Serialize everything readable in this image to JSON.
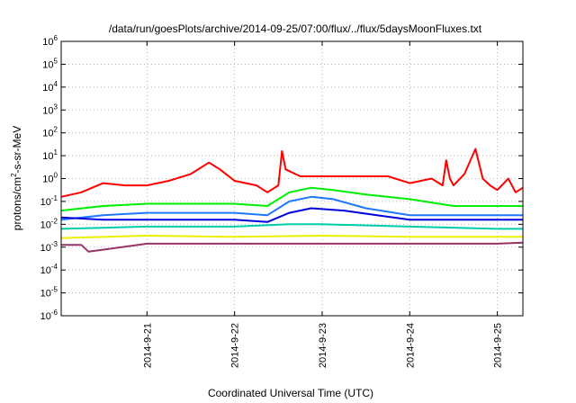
{
  "chart_data": {
    "type": "line",
    "title": "/data/run/goesPlots/archive/2014-09-25/07:00/flux/../flux/5daysMoonFluxes.txt",
    "xlabel": "Coordinated Universal Time (UTC)",
    "ylabel_parts": [
      "protons/cm",
      "2",
      "-s-sr-MeV"
    ],
    "yscale": "log",
    "ylim_exp": [
      -6,
      6
    ],
    "y_ticks": [
      {
        "base": "10",
        "exp": "6"
      },
      {
        "base": "10",
        "exp": "5"
      },
      {
        "base": "10",
        "exp": "4"
      },
      {
        "base": "10",
        "exp": "3"
      },
      {
        "base": "10",
        "exp": "2"
      },
      {
        "base": "10",
        "exp": "1"
      },
      {
        "base": "10",
        "exp": "0"
      },
      {
        "base": "10",
        "exp": "-1"
      },
      {
        "base": "10",
        "exp": "-2"
      },
      {
        "base": "10",
        "exp": "-3"
      },
      {
        "base": "10",
        "exp": "-4"
      },
      {
        "base": "10",
        "exp": "-5"
      },
      {
        "base": "10",
        "exp": "-6"
      }
    ],
    "x_start": "2014-09-20T00:30",
    "x_end": "2014-09-25T07:00",
    "x_ticks": [
      "2014-9-21",
      "2014-9-22",
      "2014-9-23",
      "2014-9-24",
      "2014-9-25"
    ],
    "grid": true,
    "series": [
      {
        "color": "#ff0000",
        "x": [
          "2014-09-20T00:30",
          "2014-09-20T06:00",
          "2014-09-20T12:00",
          "2014-09-20T18:00",
          "2014-09-21T00:00",
          "2014-09-21T06:00",
          "2014-09-21T12:00",
          "2014-09-21T17:00",
          "2014-09-21T20:00",
          "2014-09-22T00:00",
          "2014-09-22T06:00",
          "2014-09-22T09:00",
          "2014-09-22T12:00",
          "2014-09-22T13:00",
          "2014-09-22T14:00",
          "2014-09-22T18:00",
          "2014-09-23T00:00",
          "2014-09-23T06:00",
          "2014-09-23T12:00",
          "2014-09-23T18:00",
          "2014-09-24T00:00",
          "2014-09-24T06:00",
          "2014-09-24T09:00",
          "2014-09-24T10:00",
          "2014-09-24T11:00",
          "2014-09-24T12:00",
          "2014-09-24T15:00",
          "2014-09-24T18:00",
          "2014-09-24T20:00",
          "2014-09-24T22:00",
          "2014-09-25T00:00",
          "2014-09-25T03:00",
          "2014-09-25T05:00",
          "2014-09-25T07:00"
        ],
        "y_exp": [
          -0.8,
          -0.6,
          -0.2,
          -0.3,
          -0.3,
          -0.1,
          0.2,
          0.7,
          0.4,
          -0.1,
          -0.3,
          -0.6,
          -0.3,
          1.2,
          0.4,
          0.1,
          0.1,
          0.1,
          0.1,
          0.1,
          -0.2,
          0,
          -0.3,
          0.8,
          0,
          -0.3,
          0.2,
          1.3,
          0,
          -0.3,
          -0.5,
          0,
          -0.6,
          -0.4
        ]
      },
      {
        "color": "#00ee00",
        "x": [
          "2014-09-20T00:30",
          "2014-09-20T12:00",
          "2014-09-21T00:00",
          "2014-09-21T12:00",
          "2014-09-22T00:00",
          "2014-09-22T09:00",
          "2014-09-22T15:00",
          "2014-09-22T21:00",
          "2014-09-23T03:00",
          "2014-09-23T12:00",
          "2014-09-24T00:00",
          "2014-09-24T12:00",
          "2014-09-25T00:00",
          "2014-09-25T07:00"
        ],
        "y_exp": [
          -1.4,
          -1.2,
          -1.1,
          -1.1,
          -1.1,
          -1.2,
          -0.6,
          -0.4,
          -0.5,
          -0.7,
          -0.9,
          -1.2,
          -1.2,
          -1.2
        ]
      },
      {
        "color": "#1e78ff",
        "x": [
          "2014-09-20T00:30",
          "2014-09-20T12:00",
          "2014-09-21T00:00",
          "2014-09-21T12:00",
          "2014-09-22T00:00",
          "2014-09-22T09:00",
          "2014-09-22T15:00",
          "2014-09-22T21:00",
          "2014-09-23T03:00",
          "2014-09-23T12:00",
          "2014-09-24T00:00",
          "2014-09-24T12:00",
          "2014-09-25T00:00",
          "2014-09-25T07:00"
        ],
        "y_exp": [
          -1.8,
          -1.6,
          -1.5,
          -1.5,
          -1.5,
          -1.6,
          -1.0,
          -0.8,
          -0.9,
          -1.3,
          -1.6,
          -1.6,
          -1.6,
          -1.6
        ]
      },
      {
        "color": "#0000dd",
        "x": [
          "2014-09-20T00:30",
          "2014-09-20T12:00",
          "2014-09-21T00:00",
          "2014-09-21T12:00",
          "2014-09-22T00:00",
          "2014-09-22T09:00",
          "2014-09-22T15:00",
          "2014-09-22T21:00",
          "2014-09-23T06:00",
          "2014-09-23T15:00",
          "2014-09-24T00:00",
          "2014-09-24T12:00",
          "2014-09-25T00:00",
          "2014-09-25T07:00"
        ],
        "y_exp": [
          -1.7,
          -1.8,
          -1.8,
          -1.8,
          -1.8,
          -1.9,
          -1.5,
          -1.3,
          -1.4,
          -1.6,
          -1.8,
          -1.8,
          -1.8,
          -1.8
        ]
      },
      {
        "color": "#00ccaa",
        "x": [
          "2014-09-20T00:30",
          "2014-09-21T00:00",
          "2014-09-22T00:00",
          "2014-09-22T15:00",
          "2014-09-23T00:00",
          "2014-09-24T00:00",
          "2014-09-25T00:00",
          "2014-09-25T07:00"
        ],
        "y_exp": [
          -2.2,
          -2.1,
          -2.1,
          -2.0,
          -2.0,
          -2.1,
          -2.2,
          -2.2
        ]
      },
      {
        "color": "#eeee00",
        "x": [
          "2014-09-20T00:30",
          "2014-09-21T00:00",
          "2014-09-22T00:00",
          "2014-09-23T00:00",
          "2014-09-24T00:00",
          "2014-09-25T00:00",
          "2014-09-25T07:00"
        ],
        "y_exp": [
          -2.6,
          -2.5,
          -2.55,
          -2.5,
          -2.55,
          -2.55,
          -2.55
        ]
      },
      {
        "color": "#993366",
        "x": [
          "2014-09-20T00:30",
          "2014-09-20T06:00",
          "2014-09-20T08:00",
          "2014-09-21T00:00",
          "2014-09-22T00:00",
          "2014-09-23T00:00",
          "2014-09-24T00:00",
          "2014-09-25T00:00",
          "2014-09-25T07:00"
        ],
        "y_exp": [
          -2.9,
          -2.9,
          -3.2,
          -2.85,
          -2.85,
          -2.85,
          -2.85,
          -2.85,
          -2.8
        ]
      }
    ]
  }
}
